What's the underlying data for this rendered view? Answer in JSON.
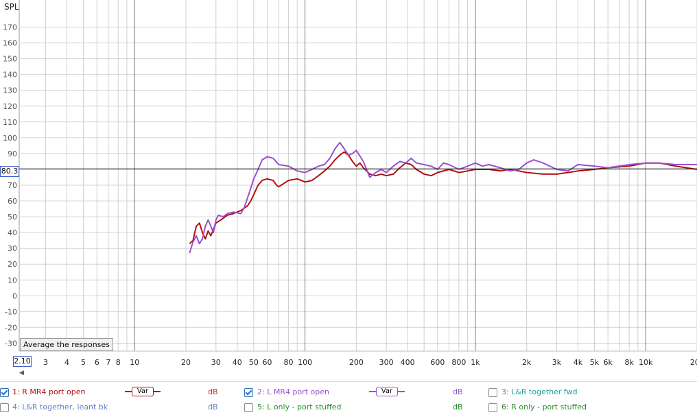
{
  "chart_data": {
    "type": "line",
    "ylabel": "SPL",
    "y_ticks": [
      "170",
      "160",
      "150",
      "140",
      "130",
      "120",
      "110",
      "100",
      "90",
      "80",
      "70",
      "60",
      "50",
      "40",
      "30",
      "20",
      "10",
      "0",
      "-10",
      "-20",
      "-30"
    ],
    "x_ticks": [
      "3",
      "4",
      "5",
      "6",
      "7",
      "8",
      "10",
      "20",
      "30",
      "40",
      "50",
      "60",
      "80",
      "100",
      "200",
      "300",
      "400",
      "600",
      "800",
      "1k",
      "2k",
      "3k",
      "4k",
      "5k",
      "6k",
      "8k",
      "10k",
      "20k"
    ],
    "x_tick_values": [
      3,
      4,
      5,
      6,
      7,
      8,
      10,
      20,
      30,
      40,
      50,
      60,
      80,
      100,
      200,
      300,
      400,
      600,
      800,
      1000,
      2000,
      3000,
      4000,
      5000,
      6000,
      8000,
      10000,
      20000
    ],
    "x_scale": "log",
    "xlim": [
      2.1,
      20000
    ],
    "ylim": [
      -35,
      175
    ],
    "cursor_y": 80.3,
    "grid": true,
    "series": [
      {
        "name": "1: R MR4 port open",
        "color": "#b01010",
        "points": [
          [
            21,
            33
          ],
          [
            22,
            35
          ],
          [
            23,
            44
          ],
          [
            24,
            46
          ],
          [
            25,
            40
          ],
          [
            26,
            36
          ],
          [
            27,
            41
          ],
          [
            28,
            38
          ],
          [
            29,
            42
          ],
          [
            30,
            46
          ],
          [
            31,
            47
          ],
          [
            33,
            49
          ],
          [
            35,
            51
          ],
          [
            38,
            52
          ],
          [
            42,
            54
          ],
          [
            46,
            57
          ],
          [
            48,
            60
          ],
          [
            50,
            64
          ],
          [
            53,
            70
          ],
          [
            56,
            73
          ],
          [
            60,
            74
          ],
          [
            65,
            73
          ],
          [
            68,
            70
          ],
          [
            70,
            69
          ],
          [
            75,
            71
          ],
          [
            80,
            73
          ],
          [
            90,
            74
          ],
          [
            95,
            73
          ],
          [
            100,
            72
          ],
          [
            110,
            73
          ],
          [
            120,
            76
          ],
          [
            130,
            79
          ],
          [
            140,
            82
          ],
          [
            150,
            86
          ],
          [
            160,
            89
          ],
          [
            170,
            91
          ],
          [
            180,
            89
          ],
          [
            190,
            85
          ],
          [
            200,
            82
          ],
          [
            210,
            84
          ],
          [
            220,
            81
          ],
          [
            240,
            77
          ],
          [
            260,
            76
          ],
          [
            280,
            77
          ],
          [
            300,
            76
          ],
          [
            330,
            77
          ],
          [
            360,
            81
          ],
          [
            390,
            84
          ],
          [
            420,
            83
          ],
          [
            450,
            80
          ],
          [
            500,
            77
          ],
          [
            550,
            76
          ],
          [
            600,
            78
          ],
          [
            700,
            80
          ],
          [
            800,
            78
          ],
          [
            900,
            79
          ],
          [
            1000,
            80
          ],
          [
            1200,
            80
          ],
          [
            1400,
            79
          ],
          [
            1600,
            80
          ],
          [
            1800,
            79
          ],
          [
            2000,
            78
          ],
          [
            2500,
            77
          ],
          [
            3000,
            77
          ],
          [
            3500,
            78
          ],
          [
            4000,
            79
          ],
          [
            5000,
            80
          ],
          [
            6000,
            81
          ],
          [
            8000,
            82
          ],
          [
            10000,
            84
          ],
          [
            12000,
            84
          ],
          [
            15000,
            82
          ],
          [
            20000,
            80
          ]
        ]
      },
      {
        "name": "2: L MR4 port open",
        "color": "#9b4fd1",
        "points": [
          [
            21,
            27
          ],
          [
            22,
            34
          ],
          [
            23,
            38
          ],
          [
            24,
            33
          ],
          [
            25,
            36
          ],
          [
            26,
            44
          ],
          [
            27,
            48
          ],
          [
            28,
            44
          ],
          [
            29,
            40
          ],
          [
            30,
            48
          ],
          [
            31,
            51
          ],
          [
            33,
            50
          ],
          [
            35,
            52
          ],
          [
            38,
            53
          ],
          [
            42,
            52
          ],
          [
            44,
            56
          ],
          [
            46,
            62
          ],
          [
            48,
            68
          ],
          [
            50,
            74
          ],
          [
            53,
            80
          ],
          [
            56,
            86
          ],
          [
            60,
            88
          ],
          [
            65,
            87
          ],
          [
            70,
            83
          ],
          [
            80,
            82
          ],
          [
            90,
            79
          ],
          [
            100,
            78
          ],
          [
            110,
            80
          ],
          [
            120,
            82
          ],
          [
            130,
            83
          ],
          [
            140,
            87
          ],
          [
            150,
            93
          ],
          [
            160,
            97
          ],
          [
            170,
            93
          ],
          [
            180,
            89
          ],
          [
            190,
            90
          ],
          [
            200,
            92
          ],
          [
            220,
            85
          ],
          [
            240,
            75
          ],
          [
            260,
            78
          ],
          [
            280,
            80
          ],
          [
            300,
            78
          ],
          [
            330,
            82
          ],
          [
            360,
            85
          ],
          [
            390,
            84
          ],
          [
            420,
            87
          ],
          [
            450,
            84
          ],
          [
            500,
            83
          ],
          [
            550,
            82
          ],
          [
            600,
            80
          ],
          [
            650,
            84
          ],
          [
            700,
            83
          ],
          [
            800,
            80
          ],
          [
            900,
            82
          ],
          [
            1000,
            84
          ],
          [
            1100,
            82
          ],
          [
            1200,
            83
          ],
          [
            1400,
            81
          ],
          [
            1600,
            79
          ],
          [
            1800,
            80
          ],
          [
            2000,
            84
          ],
          [
            2200,
            86
          ],
          [
            2500,
            84
          ],
          [
            3000,
            80
          ],
          [
            3500,
            79
          ],
          [
            4000,
            83
          ],
          [
            5000,
            82
          ],
          [
            6000,
            81
          ],
          [
            8000,
            83
          ],
          [
            10000,
            84
          ],
          [
            12000,
            84
          ],
          [
            15000,
            83
          ],
          [
            20000,
            83
          ]
        ]
      }
    ]
  },
  "ui": {
    "tooltip": "Average the responses",
    "x_start": "2.10",
    "cursor_value": "80.3"
  },
  "legend": [
    {
      "label": "1: R MR4 port open",
      "checked": true,
      "color": "#b01010",
      "var": "Var",
      "unit": "dB",
      "unit_color": "#c0392b"
    },
    {
      "label": "2: L MR4 port open",
      "checked": true,
      "color": "#9b4fd1",
      "var": "Var",
      "unit": "dB",
      "unit_color": "#8a5ac7"
    },
    {
      "label": "3: L&R together fwd",
      "checked": false,
      "color": "#1e9e9e"
    },
    {
      "label": "4: L&R together, leant bk",
      "checked": false,
      "color": "#6a7fc2",
      "unit": "dB",
      "unit_color": "#6a7fc2"
    },
    {
      "label": "5: L only - port stuffed",
      "checked": false,
      "color": "#2e8b2e",
      "unit": "dB",
      "unit_color": "#2e8b2e"
    },
    {
      "label": "6: R only - port stuffed",
      "checked": false,
      "color": "#2e8b2e"
    }
  ]
}
